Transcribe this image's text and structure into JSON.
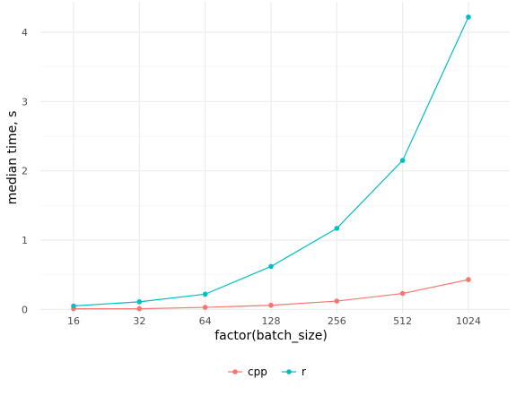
{
  "chart_data": {
    "type": "line",
    "title": "",
    "xlabel": "factor(batch_size)",
    "ylabel": "median time, s",
    "categories": [
      "16",
      "32",
      "64",
      "128",
      "256",
      "512",
      "1024"
    ],
    "series": [
      {
        "name": "cpp",
        "color": "#F8766D",
        "values": [
          0.01,
          0.01,
          0.03,
          0.06,
          0.12,
          0.23,
          0.43
        ]
      },
      {
        "name": "r",
        "color": "#00BFC4",
        "values": [
          0.05,
          0.11,
          0.22,
          0.62,
          1.17,
          2.15,
          4.22
        ]
      }
    ],
    "y_ticks": [
      "0",
      "1",
      "2",
      "3",
      "4"
    ],
    "ylim": [
      -0.06,
      4.44
    ],
    "grid": true,
    "legend_position": "bottom"
  }
}
